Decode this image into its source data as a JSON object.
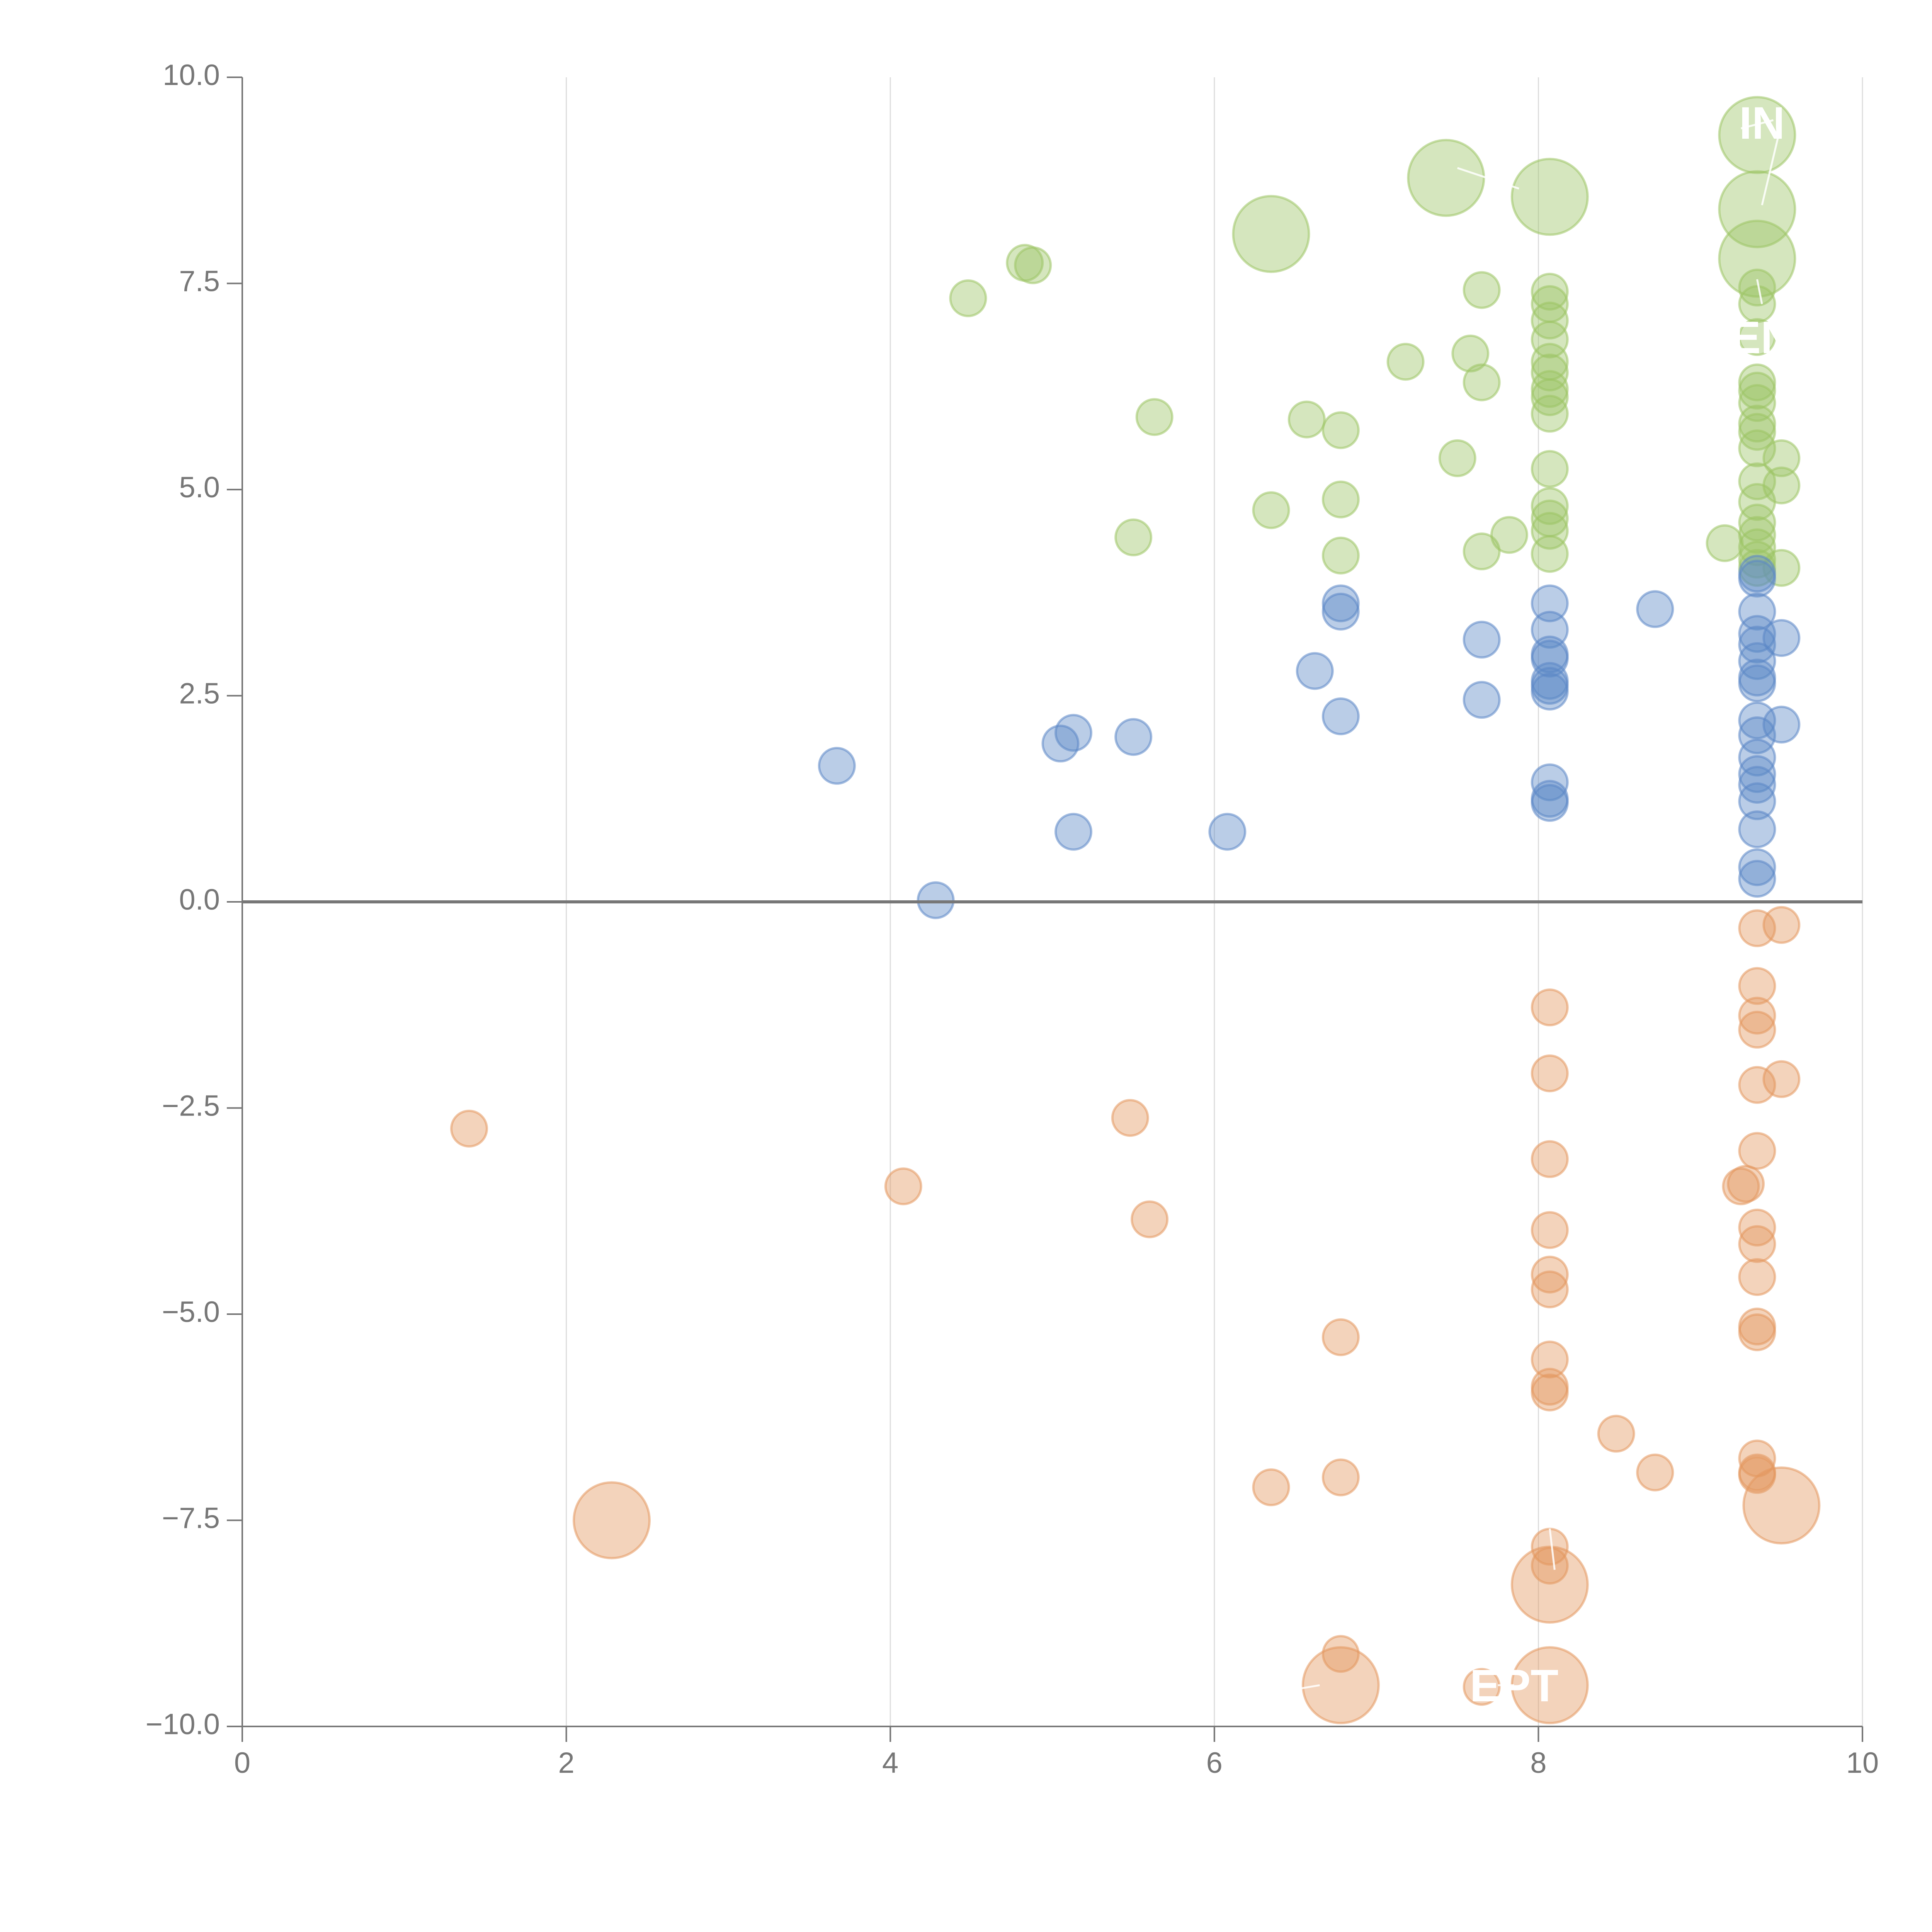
{
  "chart_data": {
    "type": "scatter",
    "title": "",
    "xlabel": "",
    "ylabel": "",
    "xlim": [
      0,
      10
    ],
    "ylim": [
      -10,
      10
    ],
    "x_ticks": [
      "0",
      "2",
      "4",
      "6",
      "8",
      "10"
    ],
    "x_tick_values": [
      0,
      2,
      4,
      6,
      8,
      10
    ],
    "y_ticks": [
      "10.0",
      "7.5",
      "5.0",
      "2.5",
      "0.0",
      "−2.5",
      "−5.0",
      "−7.5",
      "−10.0"
    ],
    "y_tick_values": [
      10,
      7.5,
      5,
      2.5,
      0,
      -2.5,
      -5,
      -7.5,
      -10
    ],
    "grid": "vertical",
    "zero_line": true,
    "colors": {
      "green": "#9cc465",
      "blue": "#5b87c6",
      "orange": "#e3975e",
      "axis": "#777777",
      "grid": "#dddddd",
      "annotation": "#ffffff"
    },
    "annotations": [
      {
        "text": "IN",
        "x": 9.38,
        "y": 9.4
      },
      {
        "text": "EN",
        "x": 9.38,
        "y": 6.8
      },
      {
        "text": "EPT",
        "x": 7.85,
        "y": -9.55
      }
    ],
    "series": [
      {
        "name": "green",
        "color": "#9cc465",
        "points": [
          [
            9.35,
            9.3,
            2
          ],
          [
            9.35,
            8.4,
            2
          ],
          [
            9.35,
            7.8,
            2
          ],
          [
            8.07,
            8.55,
            2
          ],
          [
            7.43,
            8.78,
            2
          ],
          [
            6.35,
            8.1,
            2
          ],
          [
            4.83,
            7.75,
            1
          ],
          [
            4.88,
            7.72,
            1
          ],
          [
            4.48,
            7.32,
            1
          ],
          [
            7.65,
            7.42,
            1
          ],
          [
            8.07,
            7.4,
            1
          ],
          [
            8.07,
            7.25,
            1
          ],
          [
            8.07,
            7.05,
            1
          ],
          [
            8.07,
            6.82,
            1
          ],
          [
            8.07,
            6.55,
            1
          ],
          [
            8.07,
            6.42,
            1
          ],
          [
            8.07,
            6.22,
            1
          ],
          [
            8.07,
            6.12,
            1
          ],
          [
            8.07,
            5.92,
            1
          ],
          [
            8.07,
            5.25,
            1
          ],
          [
            8.07,
            4.8,
            1
          ],
          [
            8.07,
            4.65,
            1
          ],
          [
            8.07,
            4.5,
            1
          ],
          [
            8.07,
            4.22,
            1
          ],
          [
            7.18,
            6.55,
            1
          ],
          [
            7.58,
            6.65,
            1
          ],
          [
            7.65,
            6.3,
            1
          ],
          [
            5.63,
            5.88,
            1
          ],
          [
            6.57,
            5.85,
            1
          ],
          [
            6.78,
            5.72,
            1
          ],
          [
            7.5,
            5.38,
            1
          ],
          [
            6.78,
            4.88,
            1
          ],
          [
            6.35,
            4.75,
            1
          ],
          [
            5.5,
            4.42,
            1
          ],
          [
            6.78,
            4.2,
            1
          ],
          [
            7.65,
            4.25,
            1
          ],
          [
            7.82,
            4.45,
            1
          ],
          [
            9.35,
            7.45,
            1
          ],
          [
            9.35,
            7.25,
            1
          ],
          [
            9.35,
            6.85,
            1
          ],
          [
            9.35,
            6.3,
            1
          ],
          [
            9.35,
            6.2,
            1
          ],
          [
            9.35,
            6.05,
            1
          ],
          [
            9.35,
            5.8,
            1
          ],
          [
            9.35,
            5.7,
            1
          ],
          [
            9.35,
            5.5,
            1
          ],
          [
            9.35,
            5.1,
            1
          ],
          [
            9.35,
            4.85,
            1
          ],
          [
            9.35,
            4.6,
            1
          ],
          [
            9.35,
            4.45,
            1
          ],
          [
            9.35,
            4.3,
            1
          ],
          [
            9.35,
            4.15,
            1
          ],
          [
            9.35,
            4.05,
            1
          ],
          [
            9.5,
            5.38,
            1
          ],
          [
            9.5,
            5.05,
            1
          ],
          [
            9.5,
            4.05,
            1
          ],
          [
            9.15,
            4.35,
            1
          ]
        ]
      },
      {
        "name": "blue",
        "color": "#5b87c6",
        "points": [
          [
            8.72,
            3.55,
            1
          ],
          [
            8.07,
            3.62,
            1
          ],
          [
            8.07,
            3.3,
            1
          ],
          [
            8.07,
            3.0,
            1
          ],
          [
            8.07,
            2.95,
            1
          ],
          [
            8.07,
            2.68,
            1
          ],
          [
            8.07,
            2.62,
            1
          ],
          [
            8.07,
            2.55,
            1
          ],
          [
            8.07,
            1.45,
            1
          ],
          [
            8.07,
            1.25,
            1
          ],
          [
            8.07,
            1.2,
            1
          ],
          [
            7.65,
            3.18,
            1
          ],
          [
            7.65,
            2.45,
            1
          ],
          [
            6.78,
            3.62,
            1
          ],
          [
            6.78,
            3.52,
            1
          ],
          [
            6.78,
            2.25,
            1
          ],
          [
            6.62,
            2.8,
            1
          ],
          [
            6.08,
            0.85,
            1
          ],
          [
            5.5,
            2.0,
            1
          ],
          [
            5.13,
            2.05,
            1
          ],
          [
            5.05,
            1.92,
            1
          ],
          [
            5.13,
            0.85,
            1
          ],
          [
            3.67,
            1.65,
            1
          ],
          [
            4.28,
            0.02,
            1
          ],
          [
            9.35,
            3.98,
            1
          ],
          [
            9.35,
            3.92,
            1
          ],
          [
            9.35,
            3.52,
            1
          ],
          [
            9.35,
            3.25,
            1
          ],
          [
            9.35,
            3.12,
            1
          ],
          [
            9.35,
            2.92,
            1
          ],
          [
            9.35,
            2.72,
            1
          ],
          [
            9.35,
            2.65,
            1
          ],
          [
            9.35,
            2.2,
            1
          ],
          [
            9.35,
            2.02,
            1
          ],
          [
            9.35,
            1.75,
            1
          ],
          [
            9.35,
            1.55,
            1
          ],
          [
            9.35,
            1.42,
            1
          ],
          [
            9.35,
            1.22,
            1
          ],
          [
            9.35,
            0.88,
            1
          ],
          [
            9.35,
            0.42,
            1
          ],
          [
            9.35,
            0.28,
            1
          ],
          [
            9.5,
            3.2,
            1
          ],
          [
            9.5,
            2.15,
            1
          ]
        ]
      },
      {
        "name": "orange",
        "color": "#e3975e",
        "points": [
          [
            9.35,
            -0.32,
            1
          ],
          [
            9.5,
            -0.28,
            1
          ],
          [
            9.35,
            -1.02,
            1
          ],
          [
            9.35,
            -1.38,
            1
          ],
          [
            9.35,
            -1.55,
            1
          ],
          [
            9.35,
            -2.22,
            1
          ],
          [
            9.5,
            -2.15,
            1
          ],
          [
            9.35,
            -3.02,
            1
          ],
          [
            9.25,
            -3.45,
            1
          ],
          [
            9.28,
            -3.42,
            1
          ],
          [
            9.35,
            -3.95,
            1
          ],
          [
            9.35,
            -4.15,
            1
          ],
          [
            9.35,
            -4.55,
            1
          ],
          [
            9.35,
            -5.15,
            1
          ],
          [
            9.35,
            -5.22,
            1
          ],
          [
            9.35,
            -6.75,
            1
          ],
          [
            9.35,
            -6.92,
            1
          ],
          [
            9.35,
            -6.95,
            1
          ],
          [
            9.5,
            -7.32,
            2
          ],
          [
            8.07,
            -1.28,
            1
          ],
          [
            8.07,
            -2.08,
            1
          ],
          [
            8.07,
            -3.12,
            1
          ],
          [
            8.07,
            -3.98,
            1
          ],
          [
            8.07,
            -4.52,
            1
          ],
          [
            8.07,
            -4.7,
            1
          ],
          [
            8.07,
            -5.55,
            1
          ],
          [
            8.07,
            -5.88,
            1
          ],
          [
            8.07,
            -5.95,
            1
          ],
          [
            8.07,
            -7.82,
            1
          ],
          [
            8.07,
            -8.05,
            1
          ],
          [
            8.07,
            -8.28,
            2
          ],
          [
            8.07,
            -9.5,
            2
          ],
          [
            8.48,
            -6.45,
            1
          ],
          [
            8.72,
            -6.92,
            1
          ],
          [
            7.65,
            -9.52,
            1
          ],
          [
            6.78,
            -9.12,
            1
          ],
          [
            6.78,
            -9.5,
            2
          ],
          [
            6.78,
            -5.28,
            1
          ],
          [
            6.78,
            -6.98,
            1
          ],
          [
            6.35,
            -7.1,
            1
          ],
          [
            5.48,
            -2.62,
            1
          ],
          [
            5.6,
            -3.85,
            1
          ],
          [
            4.08,
            -3.45,
            1
          ],
          [
            1.4,
            -2.75,
            1
          ],
          [
            2.28,
            -7.5,
            2
          ]
        ]
      }
    ]
  }
}
